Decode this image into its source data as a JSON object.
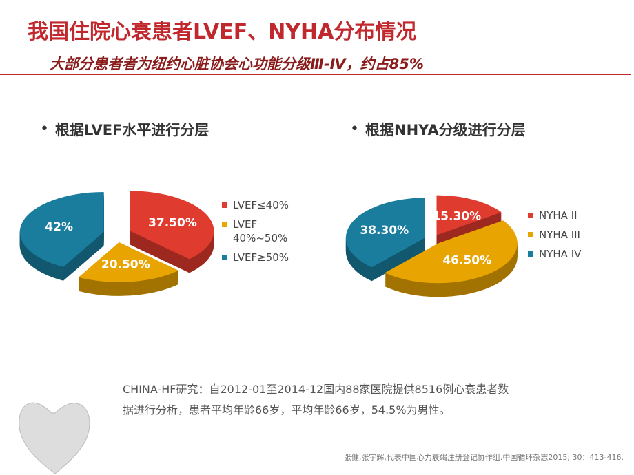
{
  "header": {
    "title": "我国住院心衰患者LVEF、NYHA分布情况",
    "subtitle": "大部分患者者为纽约心脏协会心功能分级Ⅲ-Ⅳ，约占85%"
  },
  "chart_data": [
    {
      "type": "pie",
      "title": "根据LVEF水平进行分层",
      "categories": [
        "LVEF≤40%",
        "LVEF 40%~50%",
        "LVEF≥50%"
      ],
      "values": [
        37.5,
        20.5,
        42
      ],
      "value_labels": [
        "37.50%",
        "20.50%",
        "42%"
      ],
      "colors": [
        "#e03b2f",
        "#e8a400",
        "#1a7d9e"
      ]
    },
    {
      "type": "pie",
      "title": "根据NHYA分级进行分层",
      "categories": [
        "NYHA II",
        "NYHA III",
        "NYHA IV"
      ],
      "values": [
        15.3,
        46.5,
        38.3
      ],
      "value_labels": [
        "15.30%",
        "46.50%",
        "38.30%"
      ],
      "colors": [
        "#e03b2f",
        "#e8a400",
        "#1a7d9e"
      ]
    }
  ],
  "note": {
    "lines": [
      "CHINA-HF研究：自2012-01至2014-12国内88家医院提供8516例心衰患者数",
      "据进行分析，患者平均年龄66岁，平均年龄66岁，54.5%为男性。"
    ]
  },
  "citation": "张健,张宇辉,代表中国心力衰竭注册登记协作组.中国循环杂志2015; 30：413-416."
}
